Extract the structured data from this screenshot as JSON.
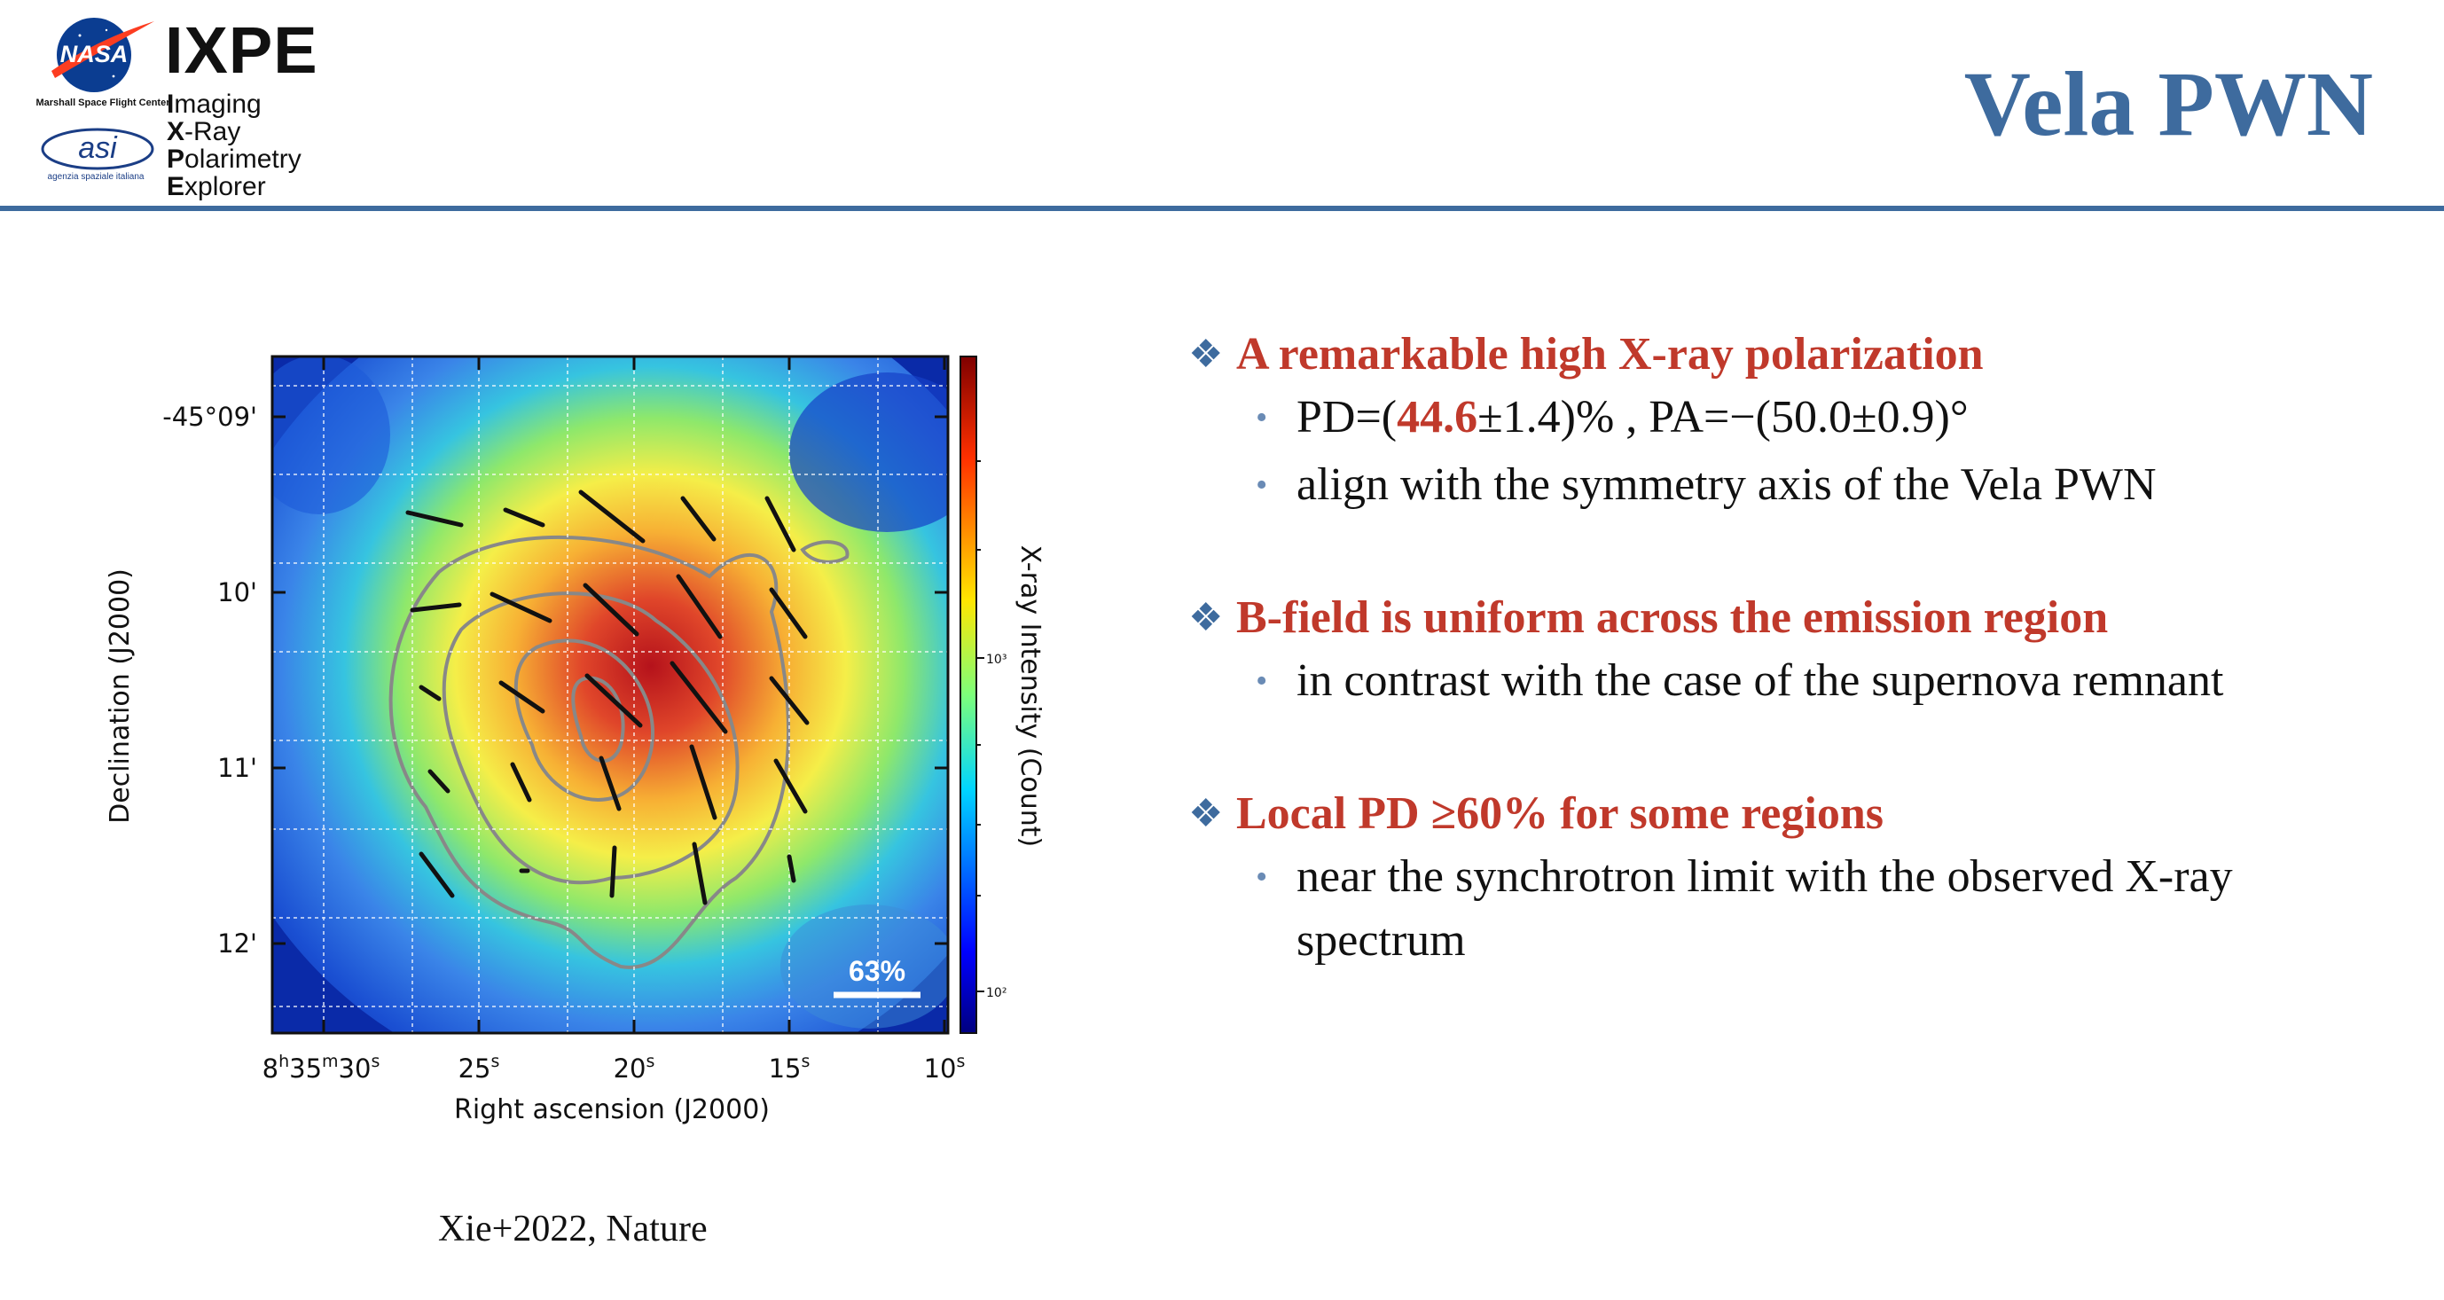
{
  "header": {
    "msfc": "Marshall Space Flight Center",
    "asi": "agenzia spaziale italiana",
    "ixpe": "IXPE",
    "ixpe_lines": [
      {
        "first": "I",
        "rest": "maging"
      },
      {
        "first": "X",
        "rest": "-Ray"
      },
      {
        "first": "P",
        "rest": "olarimetry"
      },
      {
        "first": "E",
        "rest": "xplorer"
      }
    ],
    "title": "Vela PWN"
  },
  "figure": {
    "ylabel": "Declination (J2000)",
    "xlabel": "Right ascension (J2000)",
    "colorbar_label": "X-ray Intensity (Count)",
    "scale_label": "63%",
    "dec_ticks": [
      "-45°09'",
      "10'",
      "11'",
      "12'"
    ],
    "ra_ticks": [
      {
        "main": "8",
        "sup": "h",
        "main2": "35",
        "sup2": "m",
        "main3": "30",
        "sup3": "s"
      },
      {
        "main": "25",
        "sup": "s"
      },
      {
        "main": "20",
        "sup": "s"
      },
      {
        "main": "15",
        "sup": "s"
      },
      {
        "main": "10",
        "sup": "s"
      }
    ],
    "cbar_ticks": [
      "10³",
      "10²"
    ]
  },
  "bullets": [
    {
      "heading": "A remarkable high X-ray polarization",
      "items": [
        {
          "pre": "PD=(",
          "highlight": "44.6",
          "post": "±1.4)% , PA=−(50.0±0.9)°"
        },
        {
          "text": "align with the symmetry axis of the Vela PWN"
        }
      ]
    },
    {
      "heading": "B-field is uniform across the emission region",
      "items": [
        {
          "text": "in contrast with the case of the supernova remnant"
        }
      ]
    },
    {
      "heading": "Local PD ≥60% for some regions",
      "items": [
        {
          "text": "near the synchrotron limit with the observed X-ray spectrum"
        }
      ]
    }
  ],
  "citation": "Xie+2022, Nature",
  "colors": {
    "accent": "#3e6b9e",
    "highlight": "#c0392b"
  }
}
